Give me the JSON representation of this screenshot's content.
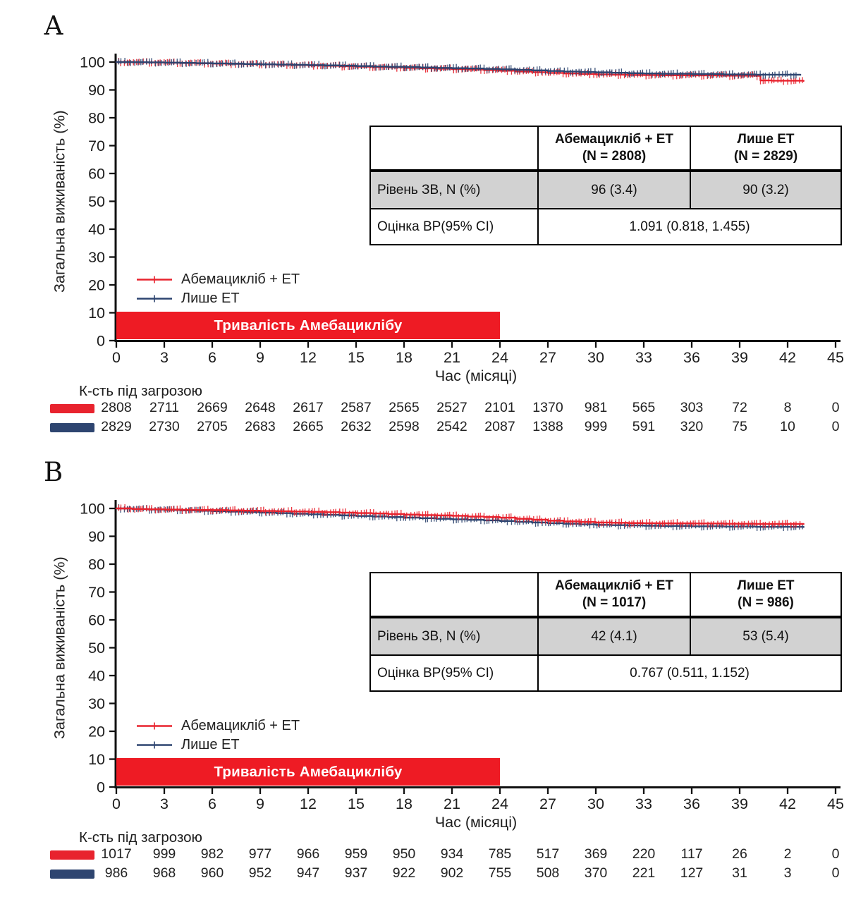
{
  "chart_data": [
    {
      "type": "line",
      "panel_label": "А",
      "xlabel": "Час (місяці)",
      "ylabel": "Загальна виживаність (%)",
      "xlim": [
        0,
        45
      ],
      "ylim": [
        0,
        100
      ],
      "xticks": [
        0,
        3,
        6,
        9,
        12,
        15,
        18,
        21,
        24,
        27,
        30,
        33,
        36,
        39,
        42,
        45
      ],
      "yticks": [
        0,
        10,
        20,
        30,
        40,
        50,
        60,
        70,
        80,
        90,
        100
      ],
      "grid": false,
      "curve_style": "kaplan-meier step curves with dense censor tick marks",
      "legend": {
        "position": "inside bottom-left",
        "entries": [
          {
            "name": "Абемацикліб + ЕТ",
            "color": "#e8232e"
          },
          {
            "name": "Лише ЕТ",
            "color": "#2e4570"
          }
        ]
      },
      "series": [
        {
          "name": "Абемацикліб + ЕТ",
          "color": "#e8232e",
          "x": [
            0,
            1,
            2,
            3,
            4,
            5,
            6,
            7,
            8,
            9,
            10,
            11,
            12,
            13,
            14,
            15,
            16,
            17,
            18,
            19,
            20,
            21,
            22,
            23,
            24,
            25,
            26,
            27,
            28,
            29,
            30,
            31,
            32,
            33,
            34,
            36,
            38,
            40,
            40.3,
            41,
            43
          ],
          "y": [
            100,
            99.9,
            99.85,
            99.75,
            99.65,
            99.55,
            99.45,
            99.35,
            99.25,
            99.15,
            99.05,
            98.9,
            98.8,
            98.65,
            98.5,
            98.35,
            98.2,
            98.05,
            97.9,
            97.75,
            97.6,
            97.45,
            97.3,
            97.1,
            96.9,
            96.6,
            96.35,
            96.1,
            95.9,
            95.7,
            95.55,
            95.45,
            95.35,
            95.3,
            95.25,
            95.2,
            95.1,
            95.05,
            93.4,
            93.3,
            93.2
          ]
        },
        {
          "name": "Лише ЕТ",
          "color": "#2e4570",
          "x": [
            0,
            1,
            2,
            3,
            4,
            5,
            6,
            7,
            8,
            9,
            10,
            11,
            12,
            13,
            14,
            15,
            16,
            17,
            18,
            19,
            20,
            21,
            22,
            23,
            24,
            25,
            26,
            27,
            28,
            29,
            30,
            31,
            32,
            33,
            34,
            36,
            38,
            40,
            42.8
          ],
          "y": [
            100,
            99.95,
            99.9,
            99.8,
            99.7,
            99.6,
            99.5,
            99.4,
            99.3,
            99.2,
            99.1,
            99.0,
            98.9,
            98.8,
            98.7,
            98.55,
            98.4,
            98.3,
            98.2,
            98.05,
            97.9,
            97.8,
            97.7,
            97.55,
            97.4,
            97.2,
            97.0,
            96.8,
            96.6,
            96.45,
            96.3,
            96.15,
            96.0,
            95.9,
            95.8,
            95.7,
            95.55,
            95.45,
            95.4
          ]
        }
      ],
      "duration_bar": {
        "label": "Тривалість Амебациклібу",
        "x_start": 0,
        "x_end": 24,
        "color": "#ee1b24",
        "text_color": "#ffffff"
      },
      "inset_table": {
        "col1_header_line1": "Абемацикліб + ЕТ",
        "col1_header_line2": "(N = 2808)",
        "col2_header_line1": "Лише ЕТ",
        "col2_header_line2": "(N = 2829)",
        "row1_label": "Рівень ЗВ, N (%)",
        "row1_col1": "96 (3.4)",
        "row1_col2": "90 (3.2)",
        "row2_label": "Оцінка ВР(95% CI)",
        "row2_value": "1.091 (0.818, 1.455)"
      },
      "risk_table": {
        "label": "К-сть під загрозою",
        "times": [
          0,
          3,
          6,
          9,
          12,
          15,
          18,
          21,
          24,
          27,
          30,
          33,
          36,
          39,
          42,
          45
        ],
        "rows": [
          {
            "name": "Абемацикліб + ЕТ",
            "color": "#e8232e",
            "counts": [
              "2808",
              "2711",
              "2669",
              "2648",
              "2617",
              "2587",
              "2565",
              "2527",
              "2101",
              "1370",
              "981",
              "565",
              "303",
              "72",
              "8",
              "0"
            ]
          },
          {
            "name": "Лише ЕТ",
            "color": "#2e4570",
            "counts": [
              "2829",
              "2730",
              "2705",
              "2683",
              "2665",
              "2632",
              "2598",
              "2542",
              "2087",
              "1388",
              "999",
              "591",
              "320",
              "75",
              "10",
              "0"
            ]
          }
        ]
      }
    },
    {
      "type": "line",
      "panel_label": "В",
      "xlabel": "Час (місяці)",
      "ylabel": "Загальна виживаність (%)",
      "xlim": [
        0,
        45
      ],
      "ylim": [
        0,
        100
      ],
      "xticks": [
        0,
        3,
        6,
        9,
        12,
        15,
        18,
        21,
        24,
        27,
        30,
        33,
        36,
        39,
        42,
        45
      ],
      "yticks": [
        0,
        10,
        20,
        30,
        40,
        50,
        60,
        70,
        80,
        90,
        100
      ],
      "grid": false,
      "curve_style": "kaplan-meier step curves with dense censor tick marks",
      "legend": {
        "position": "inside bottom-left",
        "entries": [
          {
            "name": "Абемацикліб + ЕТ",
            "color": "#e8232e"
          },
          {
            "name": "Лише ЕТ",
            "color": "#2e4570"
          }
        ]
      },
      "series": [
        {
          "name": "Лише ЕТ",
          "color": "#2e4570",
          "x": [
            0,
            1,
            2,
            3,
            4,
            5,
            6,
            7,
            8,
            9,
            10,
            11,
            12,
            13,
            14,
            15,
            16,
            17,
            18,
            19,
            20,
            21,
            22,
            23,
            24,
            25,
            26,
            27,
            28,
            29,
            30,
            31,
            32,
            33,
            34,
            36,
            38,
            40,
            43
          ],
          "y": [
            100,
            99.75,
            99.6,
            99.45,
            99.3,
            99.15,
            99.0,
            98.85,
            98.7,
            98.5,
            98.3,
            98.1,
            97.9,
            97.7,
            97.5,
            97.3,
            97.1,
            96.9,
            96.7,
            96.5,
            96.3,
            96.1,
            95.9,
            95.7,
            95.5,
            95.2,
            94.95,
            94.7,
            94.5,
            94.3,
            94.1,
            94.0,
            93.9,
            93.8,
            93.7,
            93.6,
            93.5,
            93.4,
            93.3
          ]
        },
        {
          "name": "Абемацикліб + ЕТ",
          "color": "#e8232e",
          "x": [
            0,
            1,
            2,
            3,
            4,
            5,
            6,
            7,
            8,
            9,
            10,
            11,
            12,
            13,
            14,
            15,
            16,
            17,
            18,
            19,
            20,
            21,
            22,
            23,
            24,
            25,
            26,
            27,
            28,
            29,
            30,
            31,
            32,
            33,
            34,
            36,
            38,
            40,
            43
          ],
          "y": [
            100,
            99.8,
            99.7,
            99.6,
            99.5,
            99.45,
            99.4,
            99.3,
            99.2,
            99.1,
            99.0,
            98.9,
            98.8,
            98.65,
            98.5,
            98.35,
            98.2,
            98.0,
            97.8,
            97.6,
            97.5,
            97.35,
            97.1,
            96.9,
            96.7,
            96.3,
            95.95,
            95.6,
            95.35,
            95.15,
            94.95,
            94.85,
            94.75,
            94.7,
            94.65,
            94.6,
            94.5,
            94.45,
            94.4
          ]
        }
      ],
      "duration_bar": {
        "label": "Тривалість Амебациклібу",
        "x_start": 0,
        "x_end": 24,
        "color": "#ee1b24",
        "text_color": "#ffffff"
      },
      "inset_table": {
        "col1_header_line1": "Абемацикліб + ЕТ",
        "col1_header_line2": "(N = 1017)",
        "col2_header_line1": "Лише ЕТ",
        "col2_header_line2": "(N = 986)",
        "row1_label": "Рівень ЗВ, N (%)",
        "row1_col1": "42 (4.1)",
        "row1_col2": "53 (5.4)",
        "row2_label": "Оцінка ВР(95% CI)",
        "row2_value": "0.767 (0.511, 1.152)"
      },
      "risk_table": {
        "label": "К-сть під загрозою",
        "times": [
          0,
          3,
          6,
          9,
          12,
          15,
          18,
          21,
          24,
          27,
          30,
          33,
          36,
          39,
          42,
          45
        ],
        "rows": [
          {
            "name": "Абемацикліб + ЕТ",
            "color": "#e8232e",
            "counts": [
              "1017",
              "999",
              "982",
              "977",
              "966",
              "959",
              "950",
              "934",
              "785",
              "517",
              "369",
              "220",
              "117",
              "26",
              "2",
              "0"
            ]
          },
          {
            "name": "Лише ЕТ",
            "color": "#2e4570",
            "counts": [
              "986",
              "968",
              "960",
              "952",
              "947",
              "937",
              "922",
              "902",
              "755",
              "508",
              "370",
              "221",
              "127",
              "31",
              "3",
              "0"
            ]
          }
        ]
      }
    }
  ]
}
